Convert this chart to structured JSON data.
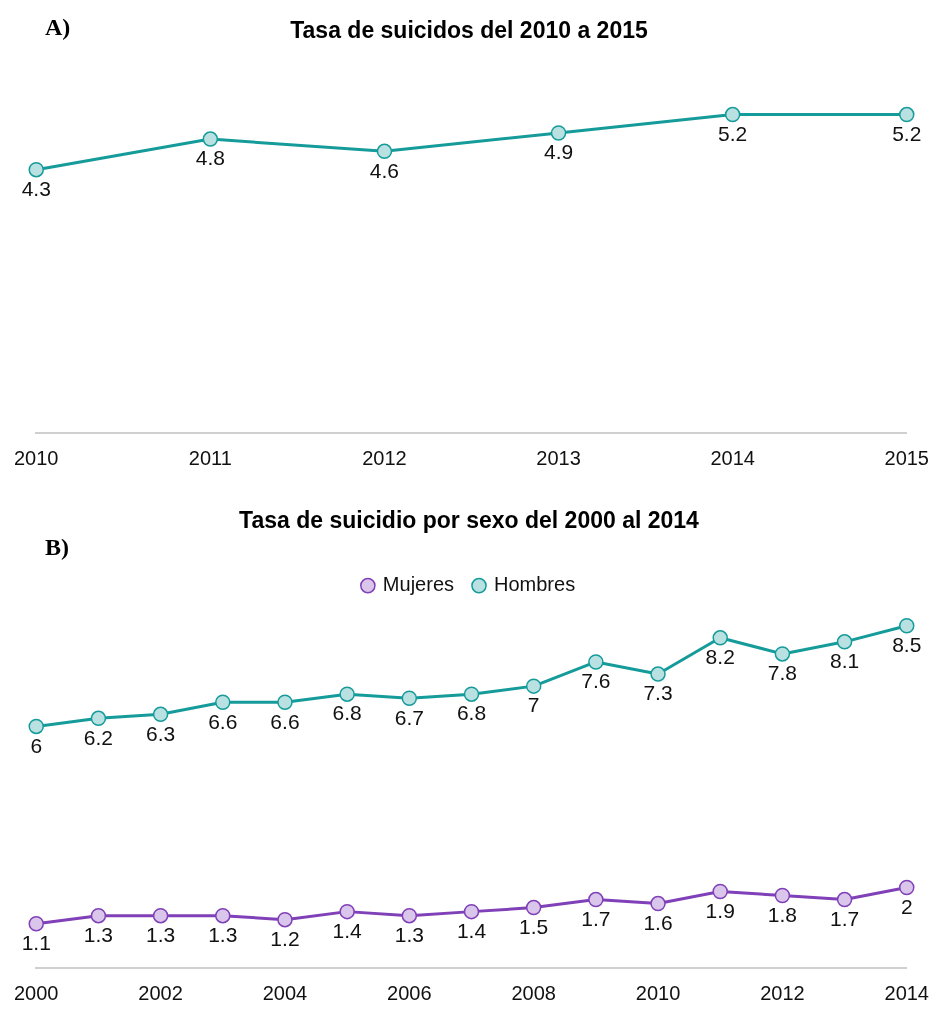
{
  "chart_data": [
    {
      "type": "line",
      "title": "Tasa de suicidos del 2010 a 2015",
      "annotations": [
        "A)"
      ],
      "categories": [
        "2010",
        "2011",
        "2012",
        "2013",
        "2014",
        "2015"
      ],
      "series": [
        {
          "color": "#169b9b",
          "values": [
            4.3,
            4.8,
            4.6,
            4.9,
            5.2,
            5.2
          ]
        }
      ],
      "tick_labels": "x",
      "data_labels": true,
      "marker": "circle",
      "grid": false,
      "legend": false
    },
    {
      "type": "line",
      "title": "Tasa de suicidio por sexo del 2000 al 2014",
      "annotations": [
        "B)"
      ],
      "categories": [
        "2000",
        null,
        "2002",
        null,
        "2004",
        null,
        "2006",
        null,
        "2008",
        null,
        "2010",
        null,
        "2012",
        null,
        "2014"
      ],
      "series": [
        {
          "name": "Mujeres",
          "color": "#8040b8",
          "values": [
            1.1,
            1.3,
            1.3,
            1.3,
            1.2,
            1.4,
            1.3,
            1.4,
            1.5,
            1.7,
            1.6,
            1.9,
            1.8,
            1.7,
            2
          ]
        },
        {
          "name": "Hombres",
          "color": "#169b9b",
          "values": [
            6,
            6.2,
            6.3,
            6.6,
            6.6,
            6.8,
            6.7,
            6.8,
            7,
            7.6,
            7.3,
            8.2,
            7.8,
            8.1,
            8.5
          ]
        }
      ],
      "tick_labels": "x",
      "data_labels": true,
      "marker": "circle",
      "grid": false,
      "legend": "top"
    }
  ]
}
